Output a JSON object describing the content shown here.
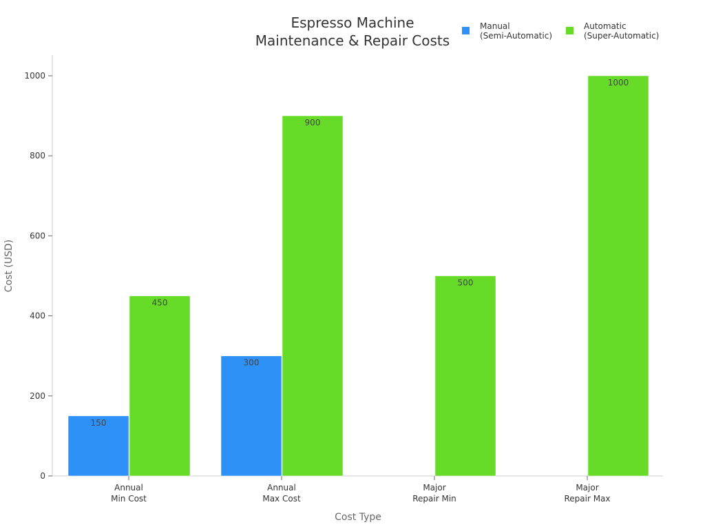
{
  "chart_data": {
    "type": "bar",
    "title": [
      "Espresso Machine",
      "Maintenance & Repair Costs"
    ],
    "xlabel": "Cost Type",
    "ylabel": "Cost (USD)",
    "categories": [
      [
        "Annual",
        "Min Cost"
      ],
      [
        "Annual",
        "Max Cost"
      ],
      [
        "Major",
        "Repair Min"
      ],
      [
        "Major",
        "Repair Max"
      ]
    ],
    "series": [
      {
        "name": [
          "Manual",
          "(Semi-Automatic)"
        ],
        "color": "#2e91f7",
        "values": [
          150,
          300,
          null,
          null
        ]
      },
      {
        "name": [
          "Automatic",
          "(Super-Automatic)"
        ],
        "color": "#66db28",
        "values": [
          450,
          900,
          500,
          1000
        ]
      }
    ],
    "ylim": [
      0,
      1050
    ],
    "yticks": [
      0,
      200,
      400,
      600,
      800,
      1000
    ],
    "grid": false,
    "legend": "top-right"
  }
}
